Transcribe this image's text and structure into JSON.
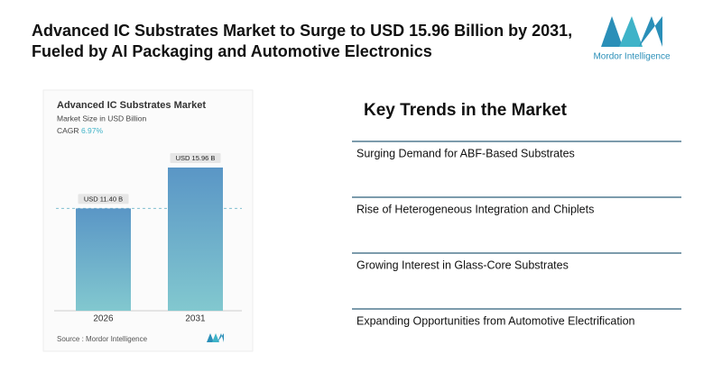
{
  "header": {
    "title_lines": [
      "Advanced IC Substrates Market to Surge to USD 15.96 Billion by 2031,",
      "Fueled by AI Packaging and Automotive Electronics"
    ],
    "logo_text": "Mordor Intelligence"
  },
  "chart_data": {
    "type": "bar",
    "title": "Advanced IC Substrates Market",
    "subtitle": "Market Size in USD Billion",
    "cagr_label": "CAGR",
    "cagr": "6.97%",
    "categories": [
      "2026",
      "2031"
    ],
    "values": [
      11.4,
      15.96
    ],
    "value_labels": [
      "USD 11.40 B",
      "USD 15.96 B"
    ],
    "color": "#5f9fc9",
    "source": "Source : Mordor Intelligence"
  },
  "trends": {
    "title": "Key Trends in the Market",
    "items": [
      "Surging Demand for ABF-Based Substrates",
      "Rise of Heterogeneous Integration and Chiplets",
      "Growing Interest in Glass-Core Substrates",
      "Expanding Opportunities from Automotive Electrification"
    ]
  }
}
